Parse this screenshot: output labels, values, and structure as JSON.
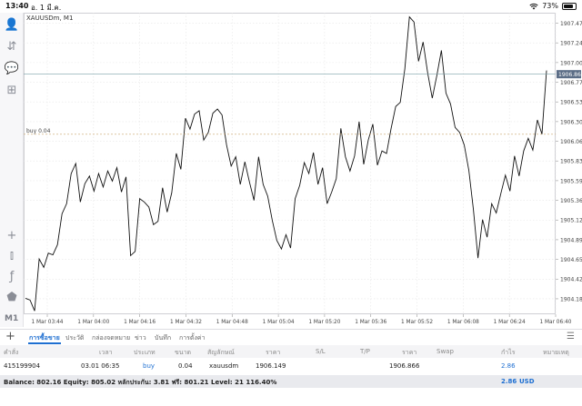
{
  "status": {
    "time": "13:40",
    "date": "อ. 1 มี.ค.",
    "battery_text": "73%",
    "battery_level": 0.73
  },
  "toolbar": {
    "items": [
      {
        "name": "account-icon",
        "glyph": "👤"
      },
      {
        "name": "trade-icon",
        "glyph": "⇵"
      },
      {
        "name": "chat-icon",
        "glyph": "💬"
      },
      {
        "name": "new-order-icon",
        "glyph": "⊞"
      },
      {
        "name": "crosshair-icon",
        "glyph": "+"
      },
      {
        "name": "candlestick-icon",
        "glyph": "⫾"
      },
      {
        "name": "indicator-icon",
        "glyph": "ƒ"
      },
      {
        "name": "objects-icon",
        "glyph": "⬟"
      }
    ],
    "timeframe": "M1"
  },
  "chart": {
    "symbol": "XAUUSDm, M1",
    "current_price": "1906.866",
    "buy_label": "buy 0.04"
  },
  "chart_data": {
    "type": "line",
    "x_labels": [
      "1 Mar 03:44",
      "1 Mar 04:00",
      "1 Mar 04:16",
      "1 Mar 04:32",
      "1 Mar 04:48",
      "1 Mar 05:04",
      "1 Mar 05:20",
      "1 Mar 05:36",
      "1 Mar 05:52",
      "1 Mar 06:08",
      "1 Mar 06:24",
      "1 Mar 06:40"
    ],
    "y_ticks": [
      "1907.475",
      "1907.240",
      "1907.005",
      "1906.770",
      "1906.535",
      "1906.300",
      "1906.065",
      "1905.830",
      "1905.595",
      "1905.360",
      "1905.125",
      "1904.890",
      "1904.655",
      "1904.420",
      "1904.185"
    ],
    "ylim": [
      1904.0,
      1907.6
    ],
    "buy_price": 1906.149,
    "current_price": 1906.866,
    "values": [
      1904.19,
      1904.17,
      1904.04,
      1904.66,
      1904.56,
      1904.73,
      1904.71,
      1904.83,
      1905.2,
      1905.32,
      1905.68,
      1905.8,
      1905.34,
      1905.56,
      1905.65,
      1905.47,
      1905.68,
      1905.52,
      1905.71,
      1905.59,
      1905.75,
      1905.46,
      1905.64,
      1904.7,
      1904.75,
      1905.38,
      1905.34,
      1905.28,
      1905.07,
      1905.11,
      1905.51,
      1905.22,
      1905.45,
      1905.92,
      1905.73,
      1906.34,
      1906.21,
      1906.39,
      1906.43,
      1906.08,
      1906.17,
      1906.4,
      1906.45,
      1906.38,
      1906.02,
      1905.77,
      1905.88,
      1905.55,
      1905.82,
      1905.58,
      1905.36,
      1905.88,
      1905.55,
      1905.41,
      1905.12,
      1904.88,
      1904.78,
      1904.95,
      1904.79,
      1905.38,
      1905.54,
      1905.81,
      1905.68,
      1905.93,
      1905.55,
      1905.75,
      1905.32,
      1905.46,
      1905.62,
      1906.22,
      1905.88,
      1905.71,
      1905.89,
      1906.3,
      1905.79,
      1906.08,
      1906.27,
      1905.78,
      1905.95,
      1905.92,
      1906.22,
      1906.48,
      1906.53,
      1906.93,
      1907.55,
      1907.49,
      1907.02,
      1907.25,
      1906.88,
      1906.58,
      1906.85,
      1907.15,
      1906.64,
      1906.51,
      1906.23,
      1906.17,
      1906.02,
      1905.72,
      1905.25,
      1904.67,
      1905.13,
      1904.92,
      1905.32,
      1905.21,
      1905.44,
      1905.66,
      1905.47,
      1905.89,
      1905.65,
      1905.95,
      1906.1,
      1905.96,
      1906.32,
      1906.15,
      1906.91
    ]
  },
  "tabs": [
    {
      "label": "การซื้อขาย",
      "active": true
    },
    {
      "label": "ประวัติ",
      "active": false
    },
    {
      "label": "กล่องจดหมาย",
      "active": false
    },
    {
      "label": "ข่าว",
      "active": false
    },
    {
      "label": "บันทึก",
      "active": false
    },
    {
      "label": "การตั้งค่า",
      "active": false
    }
  ],
  "table": {
    "headers": {
      "order": "คำสั่ง",
      "time": "เวลา",
      "type": "ประเภท",
      "volume": "ขนาด",
      "symbol": "สัญลักษณ์",
      "price_open": "ราคา",
      "sl": "S/L",
      "tp": "T/P",
      "price_current": "ราคา",
      "swap": "Swap",
      "profit": "กำไร",
      "comment": "หมายเหตุ"
    },
    "rows": [
      {
        "order": "415199904",
        "time": "03.01 06:35",
        "type": "buy",
        "volume": "0.04",
        "symbol": "xauusdm",
        "price_open": "1906.149",
        "sl": "",
        "tp": "",
        "price_current": "1906.866",
        "swap": "",
        "profit": "2.86",
        "comment": ""
      }
    ]
  },
  "balance": {
    "text": "Balance: 802.16 Equity: 805.02 หลักประกัน: 3.81 ฟรี: 801.21 Level: 21 116.40%",
    "profit": "2.86",
    "currency": "USD"
  },
  "colors": {
    "accent": "#1e6fd1",
    "price_line": "#7aa0a8",
    "buy_line": "#c9a36a",
    "grid": "#e6e6e6"
  }
}
